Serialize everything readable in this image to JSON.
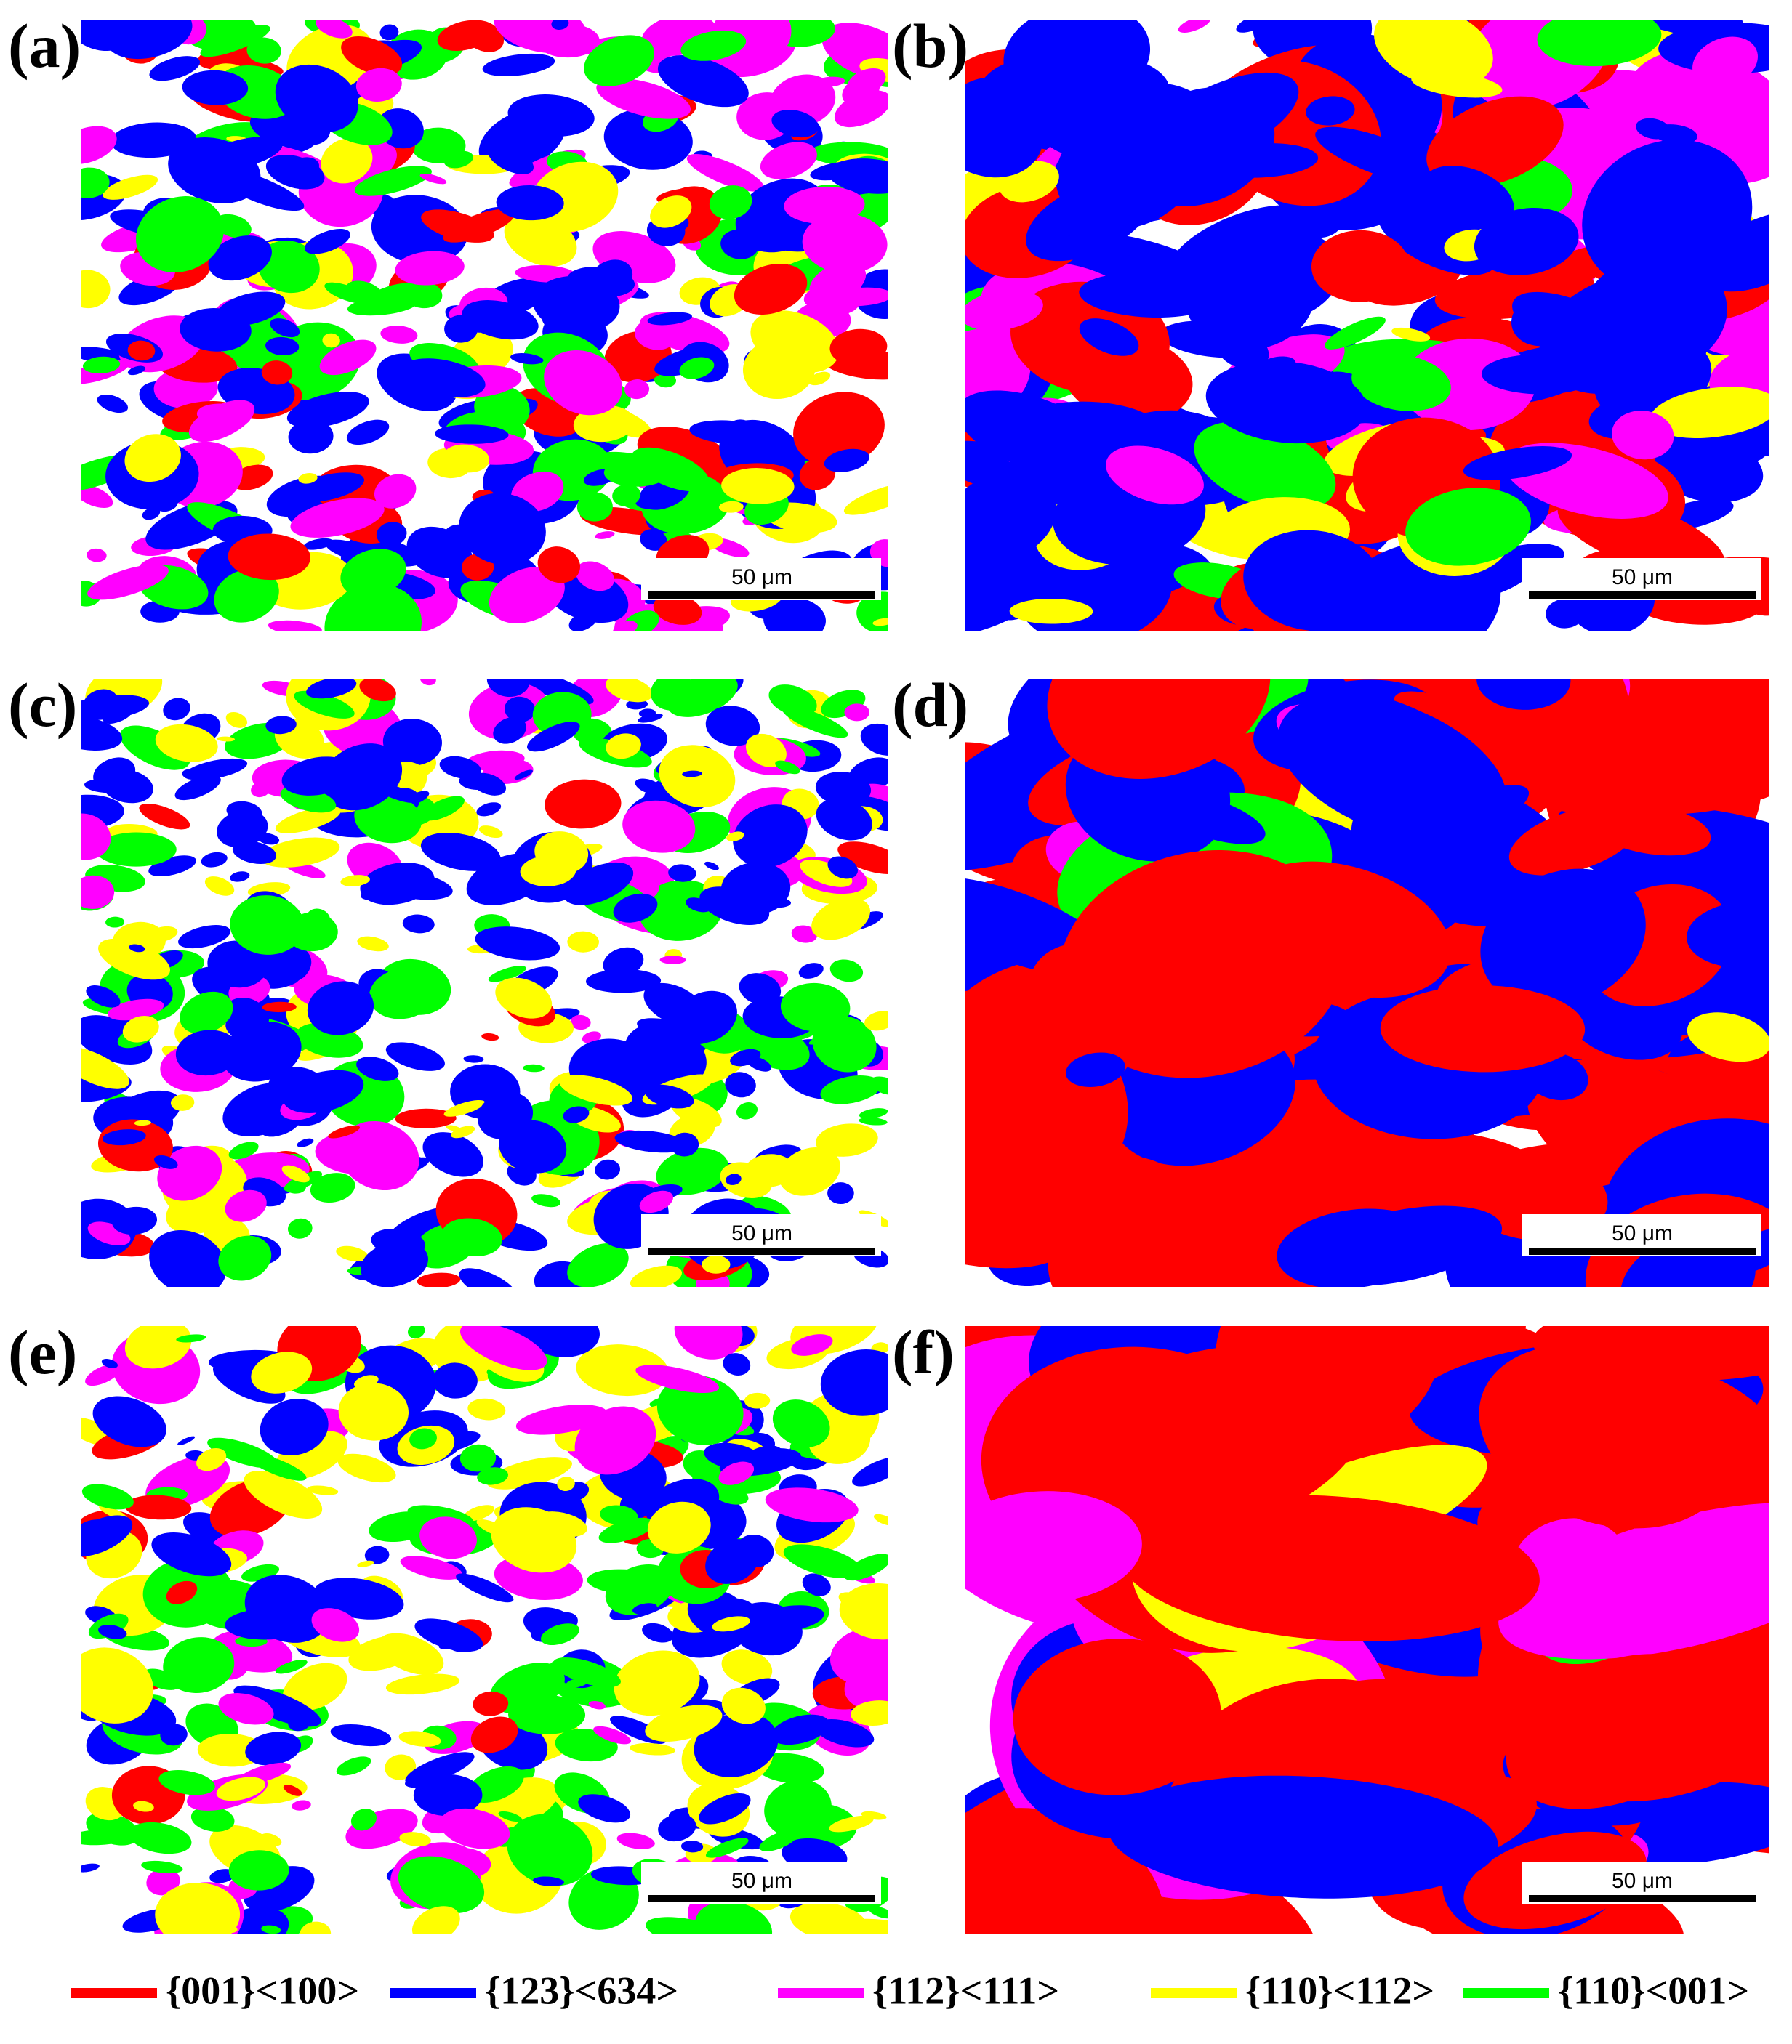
{
  "panels": [
    {
      "label": "(a)",
      "scale_bar": "50 μm"
    },
    {
      "label": "(b)",
      "scale_bar": "50 μm"
    },
    {
      "label": "(c)",
      "scale_bar": "50 μm"
    },
    {
      "label": "(d)",
      "scale_bar": "50 μm"
    },
    {
      "label": "(e)",
      "scale_bar": "50 μm"
    },
    {
      "label": "(f)",
      "scale_bar": "50 μm"
    }
  ],
  "legend": [
    {
      "label": "{001}<100>",
      "color": "#ff0000"
    },
    {
      "label": "{123}<634>",
      "color": "#0000ff"
    },
    {
      "label": "{112}<111>",
      "color": "#ff00ff"
    },
    {
      "label": "{110}<112>",
      "color": "#ffff00"
    },
    {
      "label": "{110}<001>",
      "color": "#00ff00"
    }
  ]
}
